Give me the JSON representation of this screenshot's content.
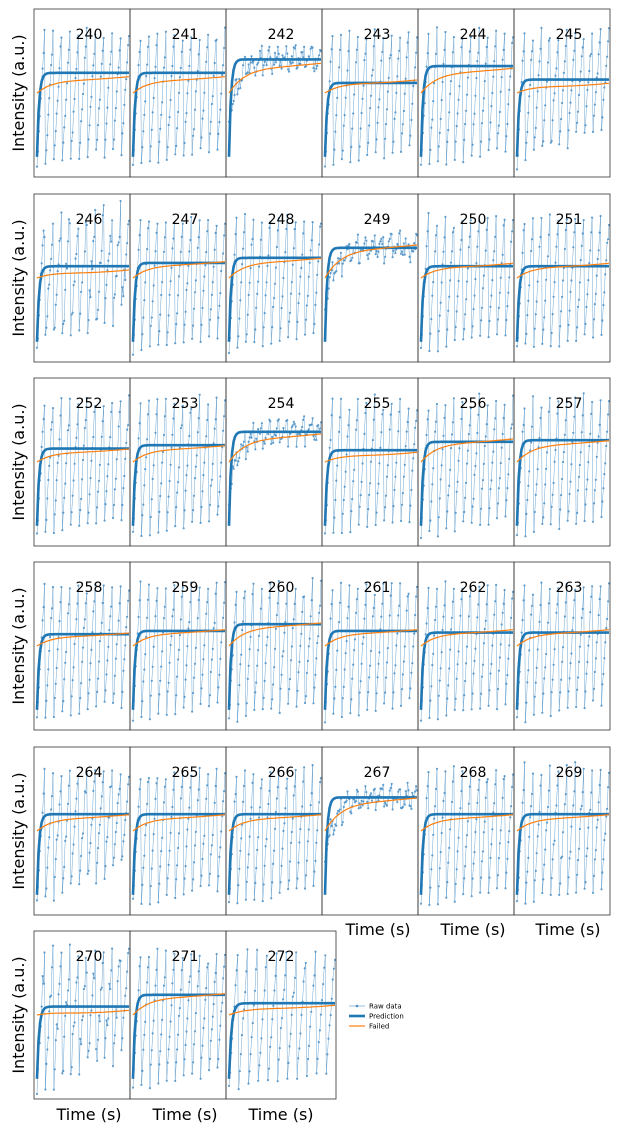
{
  "figure": {
    "ylabel": "Intensity (a.u.)",
    "xlabel": "Time (s)",
    "legend": {
      "placement": "right of bottom row",
      "entries": [
        {
          "label": "Raw data",
          "color": "#4a8fc5",
          "style": "thin line with dots"
        },
        {
          "label": "Prediction",
          "color": "#1f77b4",
          "style": "thick line"
        },
        {
          "label": "Failed",
          "color": "#ff7f0e",
          "style": "thin line"
        }
      ]
    },
    "colors": {
      "raw": "#4a8fc5",
      "prediction": "#1f77b4",
      "failed": "#ff7f0e",
      "frame": "#333333"
    }
  },
  "chart_data": {
    "type": "line",
    "grid": false,
    "x_ticks_visible": false,
    "y_ticks_visible": false,
    "panels": [
      {
        "id": "240",
        "row": 0,
        "level": 0.62,
        "fail": 0.6,
        "amp": 1.0,
        "noise": 0.1
      },
      {
        "id": "241",
        "row": 0,
        "level": 0.62,
        "fail": 0.6,
        "amp": 1.0,
        "noise": 0.1
      },
      {
        "id": "242",
        "row": 0,
        "level": 0.7,
        "fail": 0.68,
        "amp": 0.2,
        "noise": 0.35
      },
      {
        "id": "243",
        "row": 0,
        "level": 0.56,
        "fail": 0.58,
        "amp": 1.0,
        "noise": 0.1
      },
      {
        "id": "244",
        "row": 0,
        "level": 0.66,
        "fail": 0.65,
        "amp": 1.0,
        "noise": 0.1
      },
      {
        "id": "245",
        "row": 0,
        "level": 0.58,
        "fail": 0.56,
        "amp": 0.9,
        "noise": 0.2
      },
      {
        "id": "246",
        "row": 1,
        "level": 0.57,
        "fail": 0.55,
        "amp": 0.8,
        "noise": 0.5
      },
      {
        "id": "247",
        "row": 1,
        "level": 0.59,
        "fail": 0.6,
        "amp": 1.0,
        "noise": 0.1
      },
      {
        "id": "248",
        "row": 1,
        "level": 0.62,
        "fail": 0.62,
        "amp": 1.0,
        "noise": 0.1
      },
      {
        "id": "249",
        "row": 1,
        "level": 0.68,
        "fail": 0.7,
        "amp": 0.2,
        "noise": 0.35
      },
      {
        "id": "250",
        "row": 1,
        "level": 0.57,
        "fail": 0.59,
        "amp": 1.0,
        "noise": 0.1
      },
      {
        "id": "251",
        "row": 1,
        "level": 0.57,
        "fail": 0.59,
        "amp": 1.0,
        "noise": 0.1
      },
      {
        "id": "252",
        "row": 2,
        "level": 0.58,
        "fail": 0.58,
        "amp": 1.0,
        "noise": 0.1
      },
      {
        "id": "253",
        "row": 2,
        "level": 0.6,
        "fail": 0.6,
        "amp": 1.0,
        "noise": 0.1
      },
      {
        "id": "254",
        "row": 2,
        "level": 0.68,
        "fail": 0.67,
        "amp": 0.25,
        "noise": 0.3
      },
      {
        "id": "255",
        "row": 2,
        "level": 0.57,
        "fail": 0.56,
        "amp": 1.0,
        "noise": 0.1
      },
      {
        "id": "256",
        "row": 2,
        "level": 0.62,
        "fail": 0.64,
        "amp": 1.0,
        "noise": 0.15
      },
      {
        "id": "257",
        "row": 2,
        "level": 0.63,
        "fail": 0.63,
        "amp": 1.0,
        "noise": 0.15
      },
      {
        "id": "258",
        "row": 3,
        "level": 0.57,
        "fail": 0.58,
        "amp": 1.0,
        "noise": 0.1
      },
      {
        "id": "259",
        "row": 3,
        "level": 0.59,
        "fail": 0.6,
        "amp": 1.0,
        "noise": 0.1
      },
      {
        "id": "260",
        "row": 3,
        "level": 0.63,
        "fail": 0.64,
        "amp": 1.0,
        "noise": 0.15
      },
      {
        "id": "261",
        "row": 3,
        "level": 0.59,
        "fail": 0.6,
        "amp": 1.0,
        "noise": 0.1
      },
      {
        "id": "262",
        "row": 3,
        "level": 0.58,
        "fail": 0.6,
        "amp": 1.0,
        "noise": 0.1
      },
      {
        "id": "263",
        "row": 3,
        "level": 0.58,
        "fail": 0.6,
        "amp": 1.0,
        "noise": 0.1
      },
      {
        "id": "264",
        "row": 4,
        "level": 0.6,
        "fail": 0.6,
        "amp": 0.9,
        "noise": 0.25
      },
      {
        "id": "265",
        "row": 4,
        "level": 0.6,
        "fail": 0.6,
        "amp": 1.0,
        "noise": 0.1
      },
      {
        "id": "266",
        "row": 4,
        "level": 0.6,
        "fail": 0.6,
        "amp": 1.0,
        "noise": 0.1
      },
      {
        "id": "267",
        "row": 4,
        "level": 0.7,
        "fail": 0.7,
        "amp": 0.2,
        "noise": 0.35
      },
      {
        "id": "268",
        "row": 4,
        "level": 0.6,
        "fail": 0.6,
        "amp": 1.0,
        "noise": 0.1
      },
      {
        "id": "269",
        "row": 4,
        "level": 0.6,
        "fail": 0.6,
        "amp": 0.95,
        "noise": 0.2
      },
      {
        "id": "270",
        "row": 5,
        "level": 0.55,
        "fail": 0.53,
        "amp": 0.8,
        "noise": 0.5
      },
      {
        "id": "271",
        "row": 5,
        "level": 0.62,
        "fail": 0.63,
        "amp": 1.0,
        "noise": 0.1
      },
      {
        "id": "272",
        "row": 5,
        "level": 0.57,
        "fail": 0.56,
        "amp": 1.0,
        "noise": 0.1
      }
    ]
  }
}
